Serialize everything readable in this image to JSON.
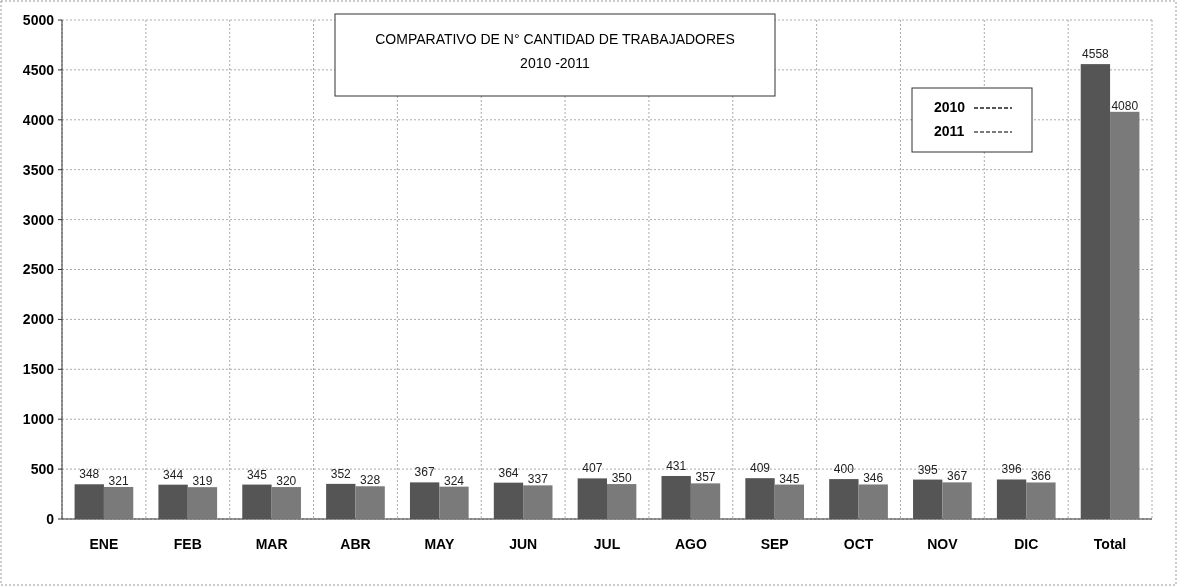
{
  "chart_data": {
    "type": "bar",
    "title": "COMPARATIVO DE N° CANTIDAD DE TRABAJADORES",
    "subtitle": "2010 -2011",
    "categories": [
      "ENE",
      "FEB",
      "MAR",
      "ABR",
      "MAY",
      "JUN",
      "JUL",
      "AGO",
      "SEP",
      "OCT",
      "NOV",
      "DIC",
      "Total"
    ],
    "series": [
      {
        "name": "2010",
        "color": "#555555",
        "values": [
          348,
          344,
          345,
          352,
          367,
          364,
          407,
          431,
          409,
          400,
          395,
          396,
          4558
        ]
      },
      {
        "name": "2011",
        "color": "#7a7a7a",
        "values": [
          321,
          319,
          320,
          328,
          324,
          337,
          350,
          357,
          345,
          346,
          367,
          366,
          4080
        ]
      }
    ],
    "ylim": [
      0,
      5000
    ],
    "yticks": [
      0,
      500,
      1000,
      1500,
      2000,
      2500,
      3000,
      3500,
      4000,
      4500,
      5000
    ],
    "grid": true,
    "legend": "top right",
    "data_labels": true
  }
}
